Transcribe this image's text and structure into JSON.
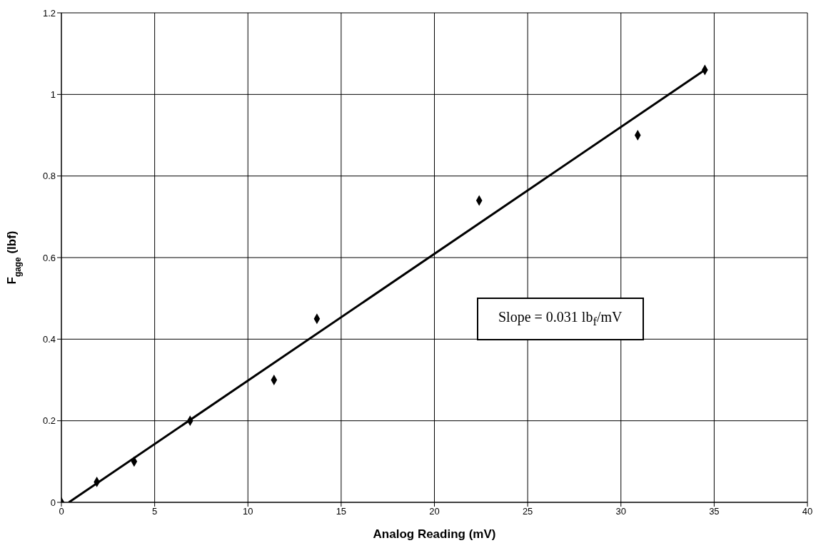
{
  "chart_data": {
    "type": "scatter",
    "xlabel": "Analog Reading (mV)",
    "ylabel": "F$_{gage}$ (lbf)",
    "x": [
      0,
      1.9,
      3.9,
      6.9,
      11.4,
      13.7,
      22.4,
      30.9,
      34.5
    ],
    "series": [
      {
        "color": "#000000",
        "marker": "diamond",
        "values": [
          0,
          0.05,
          0.1,
          0.2,
          0.3,
          0.45,
          0.74,
          0.9,
          1.06
        ]
      },
      {
        "type": "line",
        "color": "#000000",
        "x": [
          0.4,
          34.5
        ],
        "values": [
          0,
          1.06
        ]
      }
    ],
    "xlim": [
      0,
      40
    ],
    "xticks": [
      0,
      5,
      10,
      15,
      20,
      25,
      30,
      35,
      40
    ],
    "ylim": [
      0,
      1.2
    ],
    "yticks": [
      0,
      0.2,
      0.4,
      0.6,
      0.8,
      1,
      1.2
    ],
    "grid": true,
    "annotations": [
      "Slope = 0.031 lb$_{f}$/mV"
    ]
  }
}
